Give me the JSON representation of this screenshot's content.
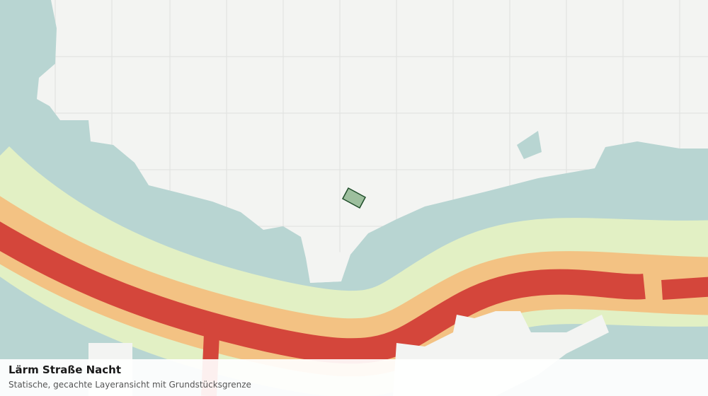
{
  "panel": {
    "title": "Lärm Straße Nacht",
    "subtitle": "Statische, gecachte Layeransicht mit Grundstücksgrenze"
  }
}
